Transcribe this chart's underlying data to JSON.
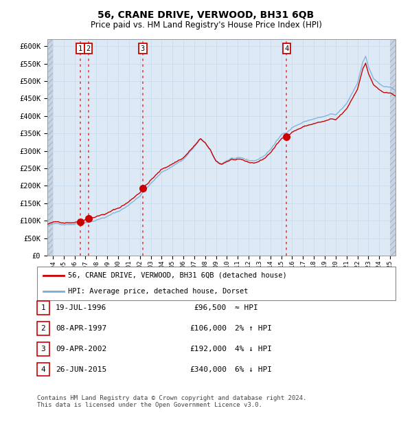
{
  "title": "56, CRANE DRIVE, VERWOOD, BH31 6QB",
  "subtitle": "Price paid vs. HM Land Registry's House Price Index (HPI)",
  "property_label": "56, CRANE DRIVE, VERWOOD, BH31 6QB (detached house)",
  "hpi_label": "HPI: Average price, detached house, Dorset",
  "footer": "Contains HM Land Registry data © Crown copyright and database right 2024.\nThis data is licensed under the Open Government Licence v3.0.",
  "sales": [
    {
      "num": 1,
      "date": "19-JUL-1996",
      "price": 96500,
      "rel": "≈ HPI",
      "year": 1996.54
    },
    {
      "num": 2,
      "date": "08-APR-1997",
      "price": 106000,
      "rel": "2% ↑ HPI",
      "year": 1997.27
    },
    {
      "num": 3,
      "date": "09-APR-2002",
      "price": 192000,
      "rel": "4% ↓ HPI",
      "year": 2002.27
    },
    {
      "num": 4,
      "date": "26-JUN-2015",
      "price": 340000,
      "rel": "6% ↓ HPI",
      "year": 2015.49
    }
  ],
  "hpi_line_color": "#7aaed6",
  "sale_line_color": "#cc0000",
  "sale_dot_color": "#cc0000",
  "dashed_line_color": "#dd4444",
  "grid_color": "#c8dcf0",
  "background_color": "#ddeaf6",
  "ylim": [
    0,
    620000
  ],
  "yticks": [
    0,
    50000,
    100000,
    150000,
    200000,
    250000,
    300000,
    350000,
    400000,
    450000,
    500000,
    550000,
    600000
  ],
  "xlim": [
    1993.5,
    2025.5
  ],
  "xticks": [
    1994,
    1995,
    1996,
    1997,
    1998,
    1999,
    2000,
    2001,
    2002,
    2003,
    2004,
    2005,
    2006,
    2007,
    2008,
    2009,
    2010,
    2011,
    2012,
    2013,
    2014,
    2015,
    2016,
    2017,
    2018,
    2019,
    2020,
    2021,
    2022,
    2023,
    2024,
    2025
  ]
}
